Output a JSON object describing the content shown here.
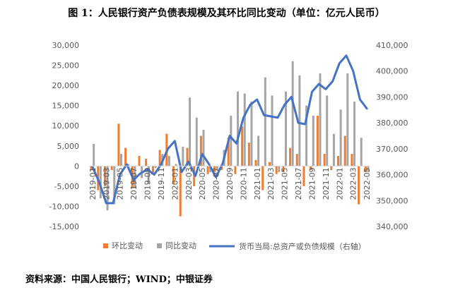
{
  "figure": {
    "title": "图 1：人民银行资产负债表规模及其环比同比变动（单位：亿元人民币）",
    "source": "资料来源：中国人民银行；WIND；中银证券"
  },
  "chart_data": {
    "type": "bar+line",
    "categories": [
      "2019-01",
      "2019-02",
      "2019-03",
      "2019-04",
      "2019-05",
      "2019-06",
      "2019-07",
      "2019-08",
      "2019-09",
      "2019-10",
      "2019-11",
      "2019-12",
      "2020-01",
      "2020-02",
      "2020-03",
      "2020-04",
      "2020-05",
      "2020-06",
      "2020-07",
      "2020-08",
      "2020-09",
      "2020-10",
      "2020-11",
      "2020-12",
      "2021-01",
      "2021-02",
      "2021-03",
      "2021-04",
      "2021-05",
      "2021-06",
      "2021-07",
      "2021-08",
      "2021-09",
      "2021-10",
      "2021-11",
      "2021-12",
      "2022-01",
      "2022-02",
      "2022-03",
      "2022-04",
      "2022-05"
    ],
    "tick_labels": [
      "2019-01",
      "2019-03",
      "2019-05",
      "2019-07",
      "2019-09",
      "2019-11",
      "2020-01",
      "2020-03",
      "2020-05",
      "2020-07",
      "2020-09",
      "2020-11",
      "2021-01",
      "2021-03",
      "2021-05",
      "2021-07",
      "2021-09",
      "2021-11",
      "2022-01",
      "2022-03",
      "2022-05"
    ],
    "series": [
      {
        "name": "环比变动",
        "axis": "left",
        "kind": "bar",
        "color": "#ED7D31",
        "values": [
          -1000,
          -6000,
          -5000,
          -1000,
          10500,
          4500,
          -5500,
          2500,
          1800,
          -2000,
          4000,
          8000,
          -4500,
          -12500,
          4500,
          -5000,
          7500,
          -2000,
          -1500,
          -1000,
          7000,
          -2000,
          9800,
          5800,
          1500,
          -6000,
          1000,
          -2000,
          -1500,
          4500,
          3000,
          -5000,
          -1000,
          12500,
          3000,
          -1000,
          2500,
          7500,
          3000,
          -9500,
          -1500
        ]
      },
      {
        "name": "同比变动",
        "axis": "left",
        "kind": "bar",
        "color": "#A5A5A5",
        "values": [
          5500,
          -8000,
          -11000,
          -9500,
          3000,
          500,
          -5500,
          -3000,
          -4500,
          -500,
          3000,
          2500,
          500,
          4800,
          17000,
          12000,
          9000,
          -1500,
          -1000,
          4000,
          12500,
          18500,
          18000,
          16000,
          7500,
          22000,
          17500,
          -1500,
          18500,
          26000,
          22500,
          15000,
          12500,
          23000,
          17500,
          8000,
          14000,
          23000,
          16000,
          7000,
          -1500
        ]
      },
      {
        "name": "货币当局:总资产或负债规模（右轴）",
        "axis": "right",
        "kind": "line",
        "color": "#4472C4",
        "values": [
          363000,
          357000,
          349000,
          349000,
          360000,
          364000,
          358000,
          360500,
          362000,
          360000,
          364000,
          370000,
          373000,
          361000,
          365000,
          359500,
          368000,
          364000,
          359000,
          364500,
          375000,
          372000,
          382000,
          387000,
          389000,
          383000,
          382500,
          382000,
          387000,
          390000,
          380000,
          379500,
          392000,
          395000,
          393000,
          396000,
          403000,
          406000,
          400000,
          389000,
          385500
        ]
      }
    ],
    "legend": [
      "环比变动",
      "同比变动",
      "货币当局:总资产或负债规模（右轴）"
    ],
    "legend_position": "bottom",
    "yleft": {
      "ylim": [
        -15000,
        30000
      ],
      "ticks": [
        -15000,
        -10000,
        -5000,
        0,
        5000,
        10000,
        15000,
        20000,
        25000,
        30000
      ],
      "tick_labels": [
        "-15,000",
        "-10,000",
        "-5,000",
        "0",
        "5,000",
        "10,000",
        "15,000",
        "20,000",
        "25,000",
        "30,000"
      ]
    },
    "yright": {
      "ylim": [
        340000,
        410000
      ],
      "ticks": [
        340000,
        350000,
        360000,
        370000,
        380000,
        390000,
        400000,
        410000
      ],
      "tick_labels": [
        "340,000",
        "350,000",
        "360,000",
        "370,000",
        "380,000",
        "390,000",
        "400,000",
        "410,000"
      ]
    },
    "grid": false
  }
}
